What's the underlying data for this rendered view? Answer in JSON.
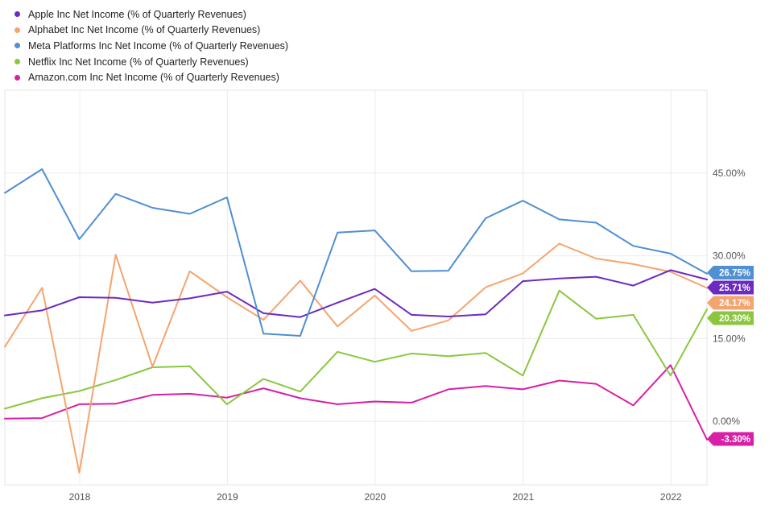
{
  "chart_data": {
    "type": "line",
    "x": [
      "2017-06-30",
      "2017-09-30",
      "2017-12-31",
      "2018-03-31",
      "2018-06-30",
      "2018-09-30",
      "2018-12-31",
      "2019-03-31",
      "2019-06-30",
      "2019-09-30",
      "2019-12-31",
      "2020-03-31",
      "2020-06-30",
      "2020-09-30",
      "2020-12-31",
      "2021-03-31",
      "2021-06-30",
      "2021-09-30",
      "2021-12-31",
      "2022-03-31"
    ],
    "series": [
      {
        "name": "Apple Inc Net Income (% of Quarterly Revenues)",
        "color": "#6c2bbf",
        "values": [
          19.2,
          20.1,
          22.5,
          22.4,
          21.5,
          22.3,
          23.5,
          19.6,
          18.9,
          21.5,
          24.0,
          19.3,
          19.0,
          19.4,
          25.4,
          25.9,
          26.2,
          24.6,
          27.4,
          25.71
        ]
      },
      {
        "name": "Alphabet Inc Net Income (% of Quarterly Revenues)",
        "color": "#f4a46f",
        "values": [
          13.5,
          24.2,
          -9.3,
          30.2,
          9.9,
          27.2,
          22.5,
          18.4,
          25.5,
          17.2,
          22.8,
          16.4,
          18.3,
          24.3,
          26.8,
          32.2,
          29.5,
          28.5,
          27.1,
          24.17
        ]
      },
      {
        "name": "Meta Platforms Inc Net Income (% of Quarterly Revenues)",
        "color": "#4f8fd2",
        "values": [
          41.4,
          45.7,
          33.0,
          41.2,
          38.7,
          37.6,
          40.6,
          15.9,
          15.5,
          34.2,
          34.6,
          27.2,
          27.3,
          36.8,
          40.0,
          36.6,
          36.0,
          31.8,
          30.4,
          26.75
        ]
      },
      {
        "name": "Netflix Inc Net Income (% of Quarterly Revenues)",
        "color": "#8cc63f",
        "values": [
          2.3,
          4.2,
          5.5,
          7.5,
          9.8,
          10.0,
          3.1,
          7.7,
          5.4,
          12.6,
          10.8,
          12.3,
          11.8,
          12.4,
          8.3,
          23.7,
          18.6,
          19.3,
          8.3,
          20.3
        ]
      },
      {
        "name": "Amazon.com Inc Net Income (% of Quarterly Revenues)",
        "color": "#d81fa6",
        "values": [
          0.5,
          0.6,
          3.1,
          3.2,
          4.8,
          5.0,
          4.3,
          6.0,
          4.2,
          3.1,
          3.6,
          3.4,
          5.8,
          6.4,
          5.8,
          7.4,
          6.8,
          2.9,
          10.2,
          -3.3
        ]
      }
    ],
    "x_tick_labels": [
      "2018",
      "2019",
      "2020",
      "2021",
      "2022"
    ],
    "y_tick_labels": [
      "45.00%",
      "30.00%",
      "15.00%",
      "0.00%"
    ],
    "y_ticks": [
      45,
      30,
      15,
      0
    ],
    "ylim": [
      -11.5,
      60
    ],
    "grid": true,
    "legend": "top-left",
    "end_labels": [
      {
        "text": "26.75%",
        "value": 26.75,
        "color": "#4f8fd2"
      },
      {
        "text": "25.71%",
        "value": 25.71,
        "color": "#6c2bbf"
      },
      {
        "text": "24.17%",
        "value": 24.17,
        "color": "#f4a46f"
      },
      {
        "text": "20.30%",
        "value": 20.3,
        "color": "#8cc63f"
      },
      {
        "text": "-3.30%",
        "value": -3.3,
        "color": "#d81fa6"
      }
    ]
  }
}
